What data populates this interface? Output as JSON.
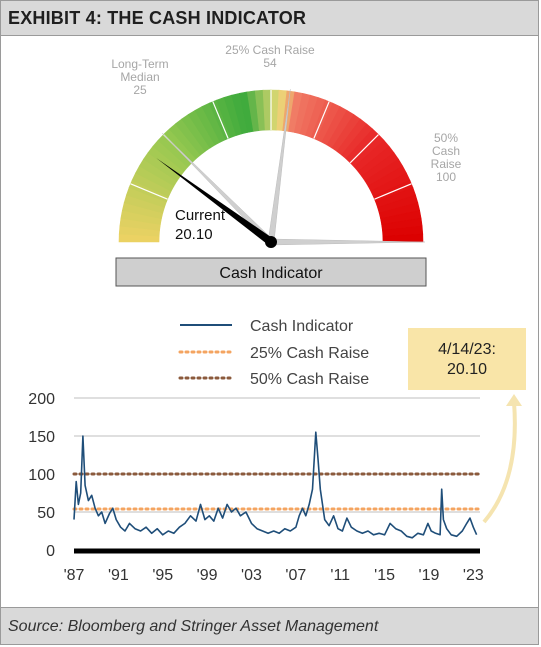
{
  "title": "EXHIBIT 4: THE CASH INDICATOR",
  "footer": "Source: Bloomberg and Stringer Asset Management",
  "gauge": {
    "label": "Cash Indicator",
    "min": 0,
    "max": 100,
    "current_label": [
      "Current",
      "20.10"
    ],
    "current_value": 20.1,
    "markers": [
      {
        "value": 25,
        "lines": [
          "Long-Term",
          "Median",
          "25"
        ]
      },
      {
        "value": 54,
        "lines": [
          "25% Cash Raise",
          "54"
        ]
      },
      {
        "value": 100,
        "lines": [
          "50%",
          "Cash",
          "Raise",
          "100"
        ]
      }
    ],
    "colors": {
      "needle": "#000000",
      "marker_needle": "#cfcfcf",
      "label_gray": "#a6a6a6",
      "bar": "#cfcfcf"
    }
  },
  "chart_data": {
    "type": "line",
    "x_ticks": [
      "'87",
      "'91",
      "'95",
      "'99",
      "'03",
      "'07",
      "'11",
      "'15",
      "'19",
      "'23"
    ],
    "y_ticks": [
      "0",
      "50",
      "100",
      "150",
      "200"
    ],
    "ylim": [
      0,
      200
    ],
    "xlim": [
      1987.0,
      2023.6
    ],
    "legend": [
      "Cash Indicator",
      "25% Cash Raise",
      "50% Cash Raise"
    ],
    "reference_lines": [
      {
        "name": "25% Cash Raise",
        "value": 54,
        "color": "#f4a460"
      },
      {
        "name": "50% Cash Raise",
        "value": 100,
        "color": "#8b5a3c"
      }
    ],
    "series_color": "#1f4e79",
    "callout": [
      "4/14/23:",
      "20.10"
    ],
    "callout_bg": "#f9e5a8",
    "series": [
      {
        "name": "Cash Indicator",
        "points": [
          [
            1987.0,
            40
          ],
          [
            1987.2,
            90
          ],
          [
            1987.4,
            60
          ],
          [
            1987.6,
            75
          ],
          [
            1987.8,
            150
          ],
          [
            1988.0,
            85
          ],
          [
            1988.3,
            65
          ],
          [
            1988.6,
            72
          ],
          [
            1988.9,
            55
          ],
          [
            1989.2,
            45
          ],
          [
            1989.5,
            50
          ],
          [
            1989.8,
            35
          ],
          [
            1990.2,
            48
          ],
          [
            1990.5,
            55
          ],
          [
            1990.8,
            40
          ],
          [
            1991.2,
            30
          ],
          [
            1991.6,
            25
          ],
          [
            1992.0,
            35
          ],
          [
            1992.5,
            28
          ],
          [
            1993.0,
            25
          ],
          [
            1993.5,
            30
          ],
          [
            1994.0,
            22
          ],
          [
            1994.5,
            28
          ],
          [
            1995.0,
            20
          ],
          [
            1995.5,
            25
          ],
          [
            1996.0,
            22
          ],
          [
            1996.5,
            30
          ],
          [
            1997.0,
            35
          ],
          [
            1997.5,
            45
          ],
          [
            1998.0,
            38
          ],
          [
            1998.4,
            60
          ],
          [
            1998.8,
            40
          ],
          [
            1999.2,
            45
          ],
          [
            1999.6,
            38
          ],
          [
            2000.0,
            55
          ],
          [
            2000.4,
            42
          ],
          [
            2000.8,
            60
          ],
          [
            2001.2,
            50
          ],
          [
            2001.6,
            55
          ],
          [
            2002.0,
            45
          ],
          [
            2002.5,
            50
          ],
          [
            2003.0,
            35
          ],
          [
            2003.5,
            28
          ],
          [
            2004.0,
            25
          ],
          [
            2004.5,
            22
          ],
          [
            2005.0,
            25
          ],
          [
            2005.5,
            22
          ],
          [
            2006.0,
            28
          ],
          [
            2006.5,
            25
          ],
          [
            2007.0,
            30
          ],
          [
            2007.3,
            45
          ],
          [
            2007.6,
            55
          ],
          [
            2007.9,
            45
          ],
          [
            2008.2,
            60
          ],
          [
            2008.5,
            80
          ],
          [
            2008.8,
            155
          ],
          [
            2009.0,
            120
          ],
          [
            2009.2,
            80
          ],
          [
            2009.4,
            60
          ],
          [
            2009.6,
            40
          ],
          [
            2010.0,
            32
          ],
          [
            2010.4,
            45
          ],
          [
            2010.8,
            28
          ],
          [
            2011.2,
            25
          ],
          [
            2011.6,
            42
          ],
          [
            2012.0,
            30
          ],
          [
            2012.5,
            25
          ],
          [
            2013.0,
            22
          ],
          [
            2013.5,
            25
          ],
          [
            2014.0,
            20
          ],
          [
            2014.5,
            22
          ],
          [
            2015.0,
            20
          ],
          [
            2015.5,
            35
          ],
          [
            2016.0,
            28
          ],
          [
            2016.5,
            25
          ],
          [
            2017.0,
            18
          ],
          [
            2017.5,
            16
          ],
          [
            2018.0,
            22
          ],
          [
            2018.5,
            20
          ],
          [
            2018.9,
            35
          ],
          [
            2019.2,
            25
          ],
          [
            2019.6,
            22
          ],
          [
            2020.0,
            20
          ],
          [
            2020.15,
            80
          ],
          [
            2020.3,
            40
          ],
          [
            2020.6,
            28
          ],
          [
            2021.0,
            20
          ],
          [
            2021.5,
            18
          ],
          [
            2022.0,
            25
          ],
          [
            2022.4,
            35
          ],
          [
            2022.7,
            42
          ],
          [
            2023.0,
            30
          ],
          [
            2023.29,
            20.1
          ]
        ]
      }
    ]
  }
}
